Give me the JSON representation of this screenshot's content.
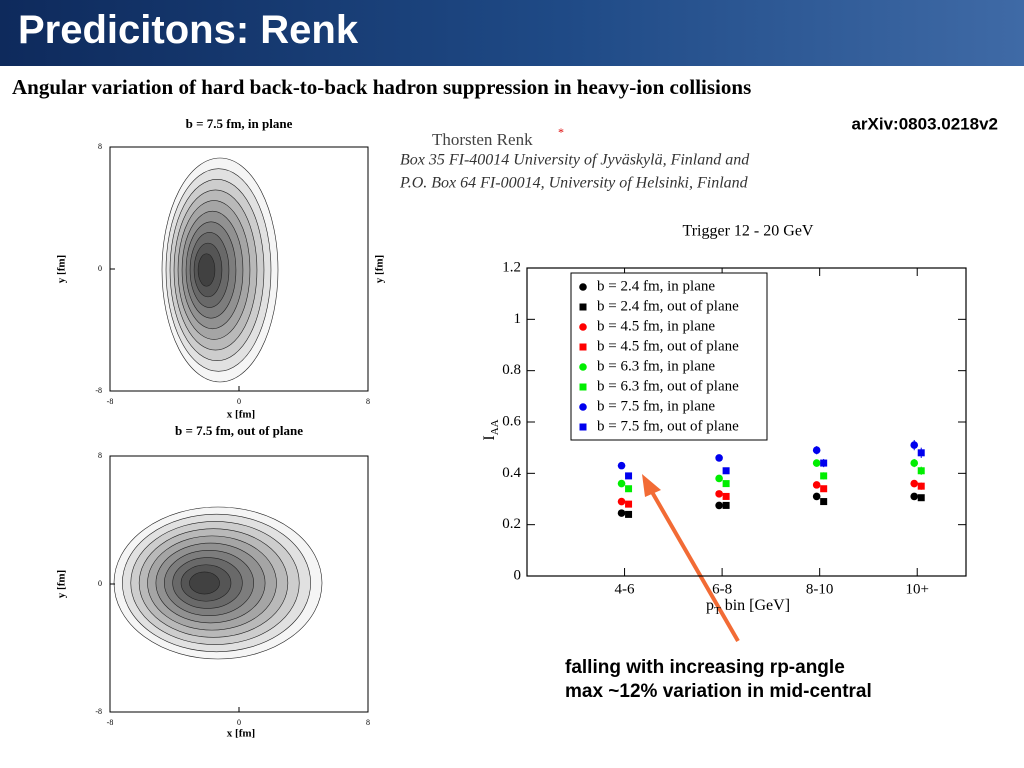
{
  "header": {
    "title": "Predicitons: Renk"
  },
  "paper": {
    "title": "Angular variation of hard back-to-back hadron suppression in heavy-ion collisions",
    "arxiv": "arXiv:0803.0218v2",
    "author": "Thorsten Renk",
    "author_note": "*",
    "affiliation": [
      "Box 35 FI-40014 University of Jyväskylä, Finland and",
      "P.O. Box 64 FI-00014, University of Helsinki, Finland"
    ]
  },
  "contours": [
    {
      "title": "b = 7.5 fm, in plane",
      "xlabel": "x [fm]",
      "ylabel": "y [fm]",
      "xlim": [
        -8,
        8
      ],
      "ylim": [
        -8,
        8
      ],
      "xticks": [
        -8,
        0,
        8
      ],
      "yticks": [
        -8,
        0,
        8
      ]
    },
    {
      "title": "b = 7.5 fm, out of plane",
      "xlabel": "x [fm]",
      "ylabel": "y [fm]",
      "xlim": [
        -8,
        8
      ],
      "ylim": [
        -8,
        8
      ],
      "xticks": [
        -8,
        0,
        8
      ],
      "yticks": [
        -8,
        0,
        8
      ]
    }
  ],
  "chart_data": {
    "type": "scatter",
    "title": "Trigger 12 - 20 GeV",
    "xlabel": [
      "p",
      "T",
      " bin [GeV]"
    ],
    "ylabel": [
      "I",
      "AA"
    ],
    "categories": [
      "4-6",
      "6-8",
      "8-10",
      "10+"
    ],
    "ylim": [
      0,
      1.2
    ],
    "yticks": [
      0,
      0.2,
      0.4,
      0.6,
      0.8,
      1,
      1.2
    ],
    "legend": "upper left",
    "series": [
      {
        "name": "b = 2.4 fm, in plane",
        "color": "#000000",
        "marker": "circle",
        "values": [
          0.245,
          0.275,
          0.31,
          0.31
        ],
        "errors": [
          0.005,
          0.008,
          0.01,
          0.012
        ]
      },
      {
        "name": "b = 2.4 fm, out of plane",
        "color": "#000000",
        "marker": "square",
        "values": [
          0.24,
          0.275,
          0.29,
          0.305
        ],
        "errors": [
          0.005,
          0.008,
          0.01,
          0.012
        ]
      },
      {
        "name": "b = 4.5 fm, in plane",
        "color": "#ff0000",
        "marker": "circle",
        "values": [
          0.29,
          0.32,
          0.355,
          0.36
        ],
        "errors": [
          0.006,
          0.009,
          0.012,
          0.014
        ]
      },
      {
        "name": "b = 4.5 fm, out of plane",
        "color": "#ff0000",
        "marker": "square",
        "values": [
          0.28,
          0.31,
          0.34,
          0.35
        ],
        "errors": [
          0.006,
          0.009,
          0.012,
          0.014
        ]
      },
      {
        "name": "b = 6.3 fm, in plane",
        "color": "#00ee00",
        "marker": "circle",
        "values": [
          0.36,
          0.38,
          0.44,
          0.44
        ],
        "errors": [
          0.007,
          0.01,
          0.014,
          0.016
        ]
      },
      {
        "name": "b = 6.3 fm, out of plane",
        "color": "#00ee00",
        "marker": "square",
        "values": [
          0.34,
          0.36,
          0.39,
          0.41
        ],
        "errors": [
          0.007,
          0.01,
          0.014,
          0.016
        ]
      },
      {
        "name": "b = 7.5 fm, in plane",
        "color": "#0000ee",
        "marker": "circle",
        "values": [
          0.43,
          0.46,
          0.49,
          0.51
        ],
        "errors": [
          0.008,
          0.012,
          0.016,
          0.02
        ]
      },
      {
        "name": "b = 7.5 fm, out of plane",
        "color": "#0000ee",
        "marker": "square",
        "values": [
          0.39,
          0.41,
          0.44,
          0.48
        ],
        "errors": [
          0.008,
          0.012,
          0.016,
          0.02
        ]
      }
    ]
  },
  "annotation": [
    "falling with increasing rp-angle",
    "max ~12% variation in mid-central"
  ]
}
